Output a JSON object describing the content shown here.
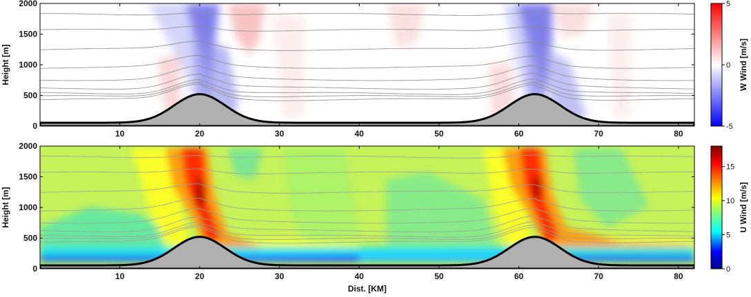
{
  "chart_data": [
    {
      "type": "heatmap",
      "field": "W",
      "ylabel": "Height [m]",
      "xlabel": "",
      "xlim": [
        0,
        82
      ],
      "ylim": [
        0,
        2000
      ],
      "xticks": [
        "10",
        "20",
        "30",
        "40",
        "50",
        "60",
        "70",
        "80"
      ],
      "xtick_values": [
        10,
        20,
        30,
        40,
        50,
        60,
        70,
        80
      ],
      "yticks": [
        "0",
        "500",
        "1000",
        "1500",
        "2000"
      ],
      "ytick_values": [
        0,
        500,
        1000,
        1500,
        2000
      ],
      "colorbar": {
        "label": "W Wind [m/s]",
        "ticks": [
          "5",
          "0",
          "-5"
        ],
        "tick_values": [
          5,
          0,
          -5
        ],
        "range": [
          -5,
          5
        ],
        "colors": [
          "#0000ff",
          "#ffffff",
          "#ff0000"
        ]
      },
      "terrain": {
        "base_height": 55,
        "peaks": [
          {
            "x": 20,
            "height": 520
          },
          {
            "x": 62,
            "height": 520
          }
        ]
      }
    },
    {
      "type": "heatmap",
      "field": "U",
      "ylabel": "Height [m]",
      "xlabel": "Dist. [KM]",
      "xlim": [
        0,
        82
      ],
      "ylim": [
        0,
        2000
      ],
      "xticks": [
        "10",
        "20",
        "30",
        "40",
        "50",
        "60",
        "70",
        "80"
      ],
      "xtick_values": [
        10,
        20,
        30,
        40,
        50,
        60,
        70,
        80
      ],
      "yticks": [
        "0",
        "500",
        "1000",
        "1500",
        "2000"
      ],
      "ytick_values": [
        0,
        500,
        1000,
        1500,
        2000
      ],
      "colorbar": {
        "label": "U Wind [m/s]",
        "ticks": [
          "15",
          "10",
          "5",
          "0"
        ],
        "tick_values": [
          15,
          10,
          5,
          0
        ],
        "range": [
          0,
          18
        ],
        "colors": [
          "#00008f",
          "#0000ff",
          "#00ffff",
          "#80ff80",
          "#ffff00",
          "#ff8000",
          "#ff0000",
          "#800000"
        ]
      },
      "terrain": {
        "base_height": 55,
        "peaks": [
          {
            "x": 20,
            "height": 520
          },
          {
            "x": 62,
            "height": 520
          }
        ]
      }
    }
  ]
}
